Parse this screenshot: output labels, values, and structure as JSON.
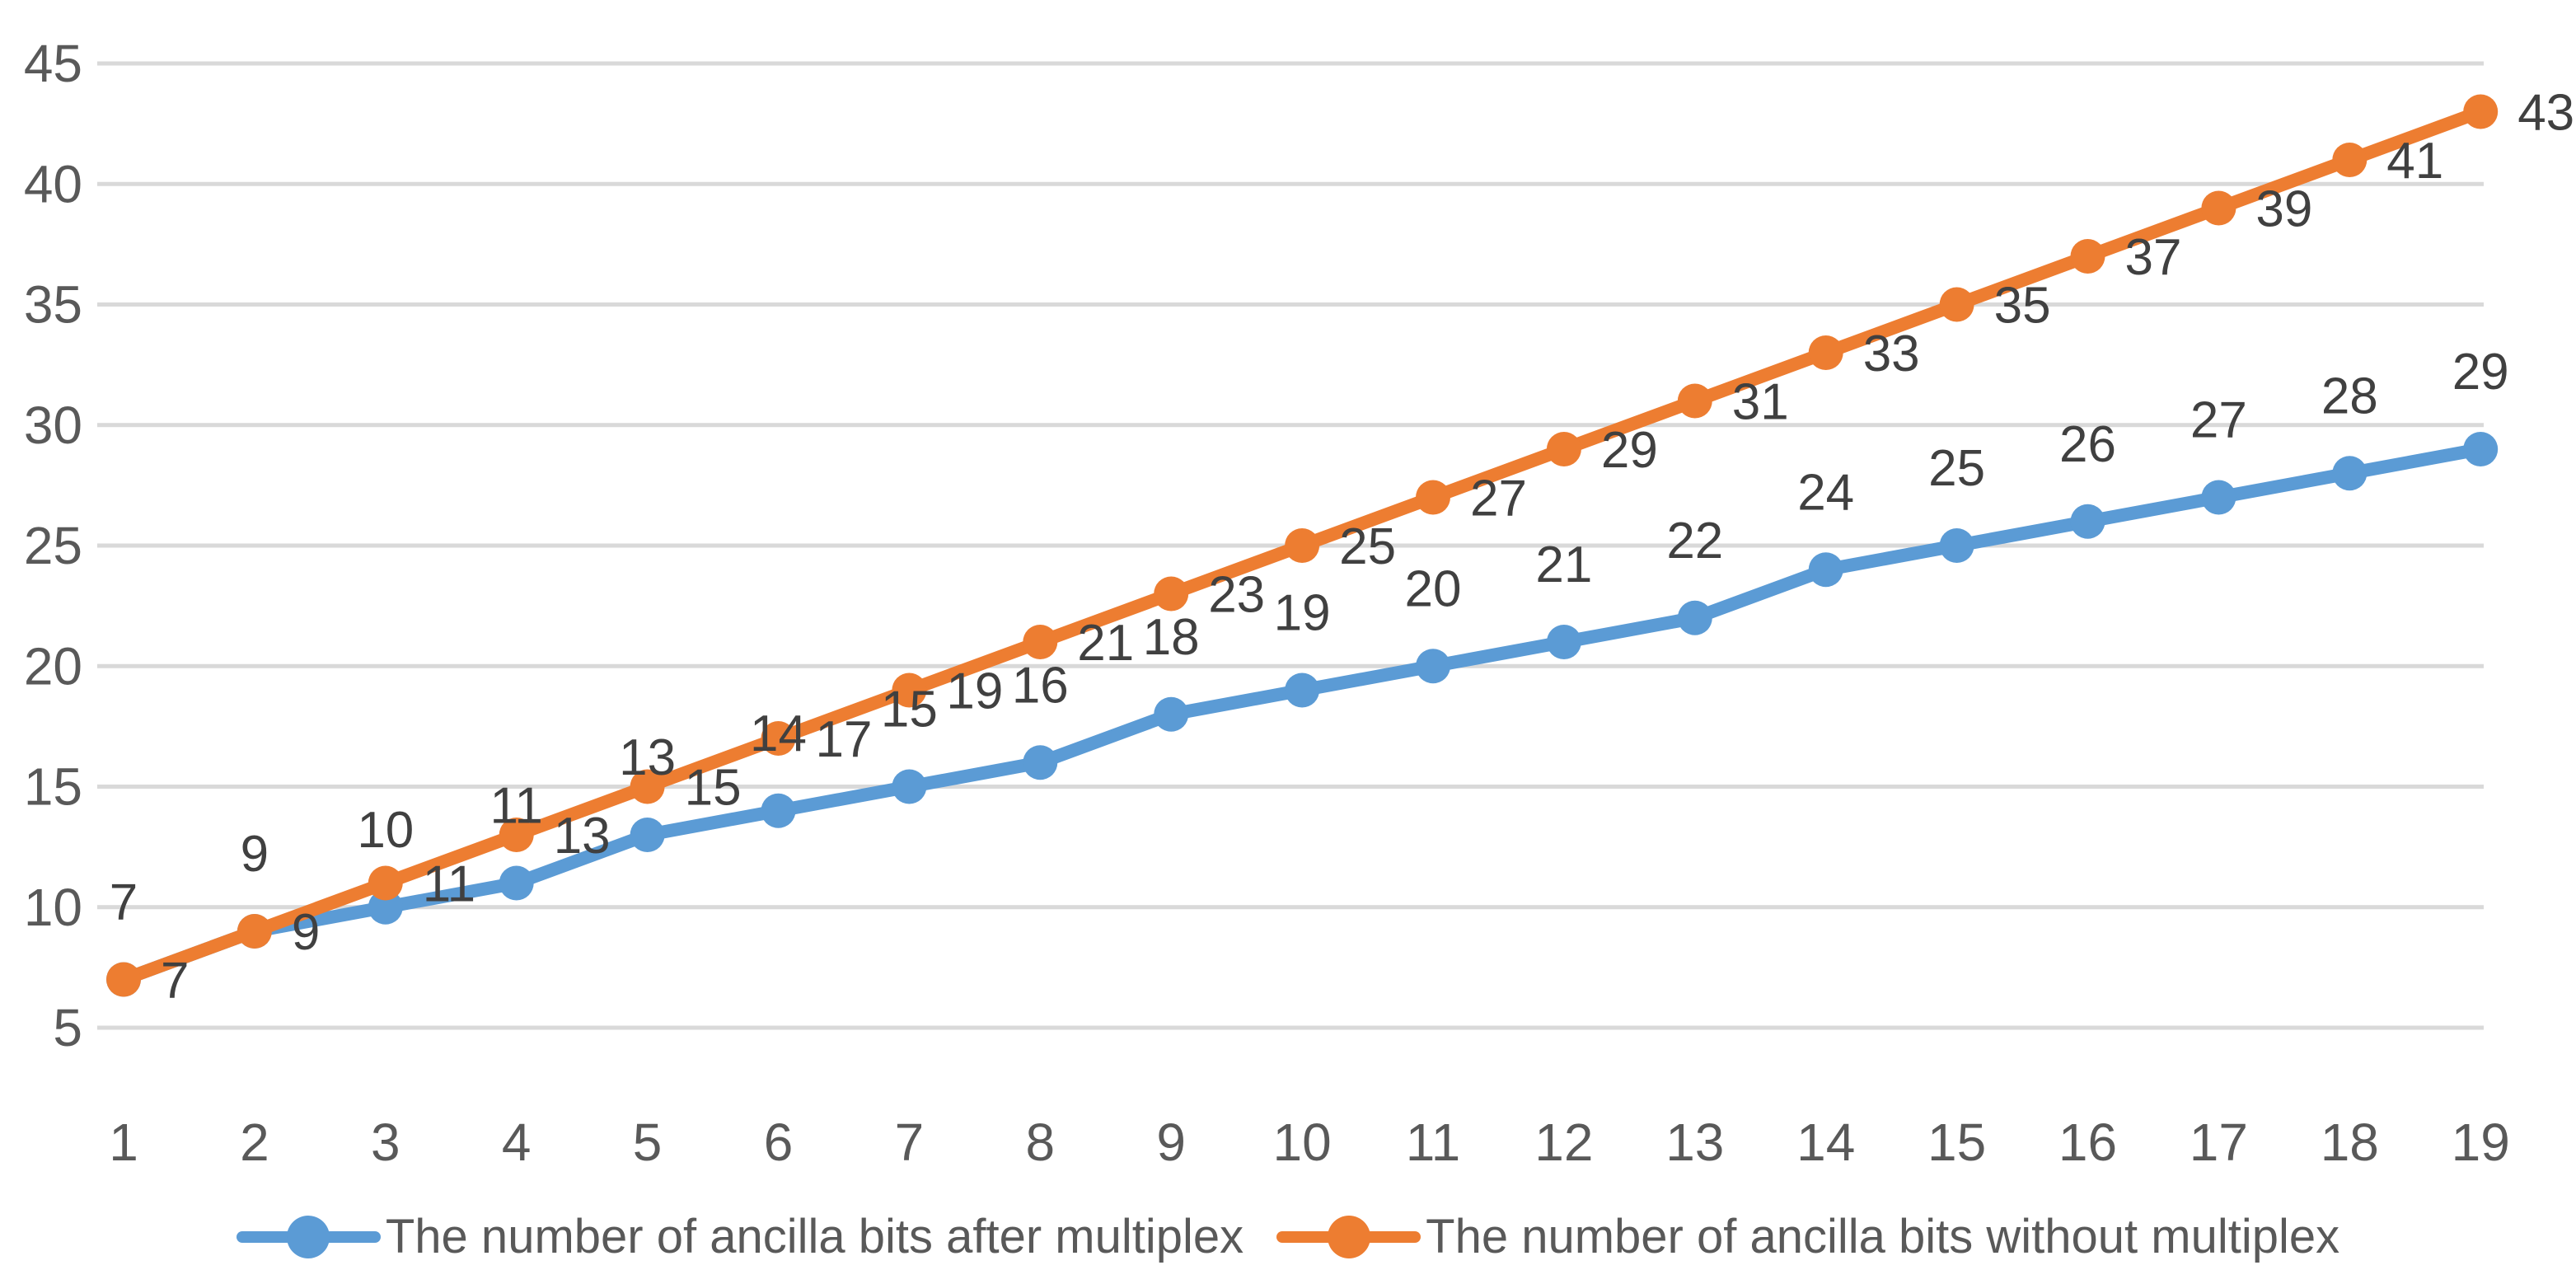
{
  "chart_data": {
    "type": "line",
    "title": "",
    "xlabel": "",
    "ylabel": "",
    "categories": [
      "1",
      "2",
      "3",
      "4",
      "5",
      "6",
      "7",
      "8",
      "9",
      "10",
      "11",
      "12",
      "13",
      "14",
      "15",
      "16",
      "17",
      "18",
      "19"
    ],
    "y_axis": {
      "min": 5,
      "max": 45,
      "step": 5,
      "tick_labels": [
        "45",
        "40",
        "35",
        "30",
        "25",
        "20",
        "15",
        "10",
        "5"
      ]
    },
    "grid": true,
    "legend_position": "bottom",
    "series": [
      {
        "name": "The number of ancilla bits after multiplex",
        "color": "#5B9BD5",
        "values": [
          7,
          9,
          10,
          11,
          13,
          14,
          15,
          16,
          18,
          19,
          20,
          21,
          22,
          24,
          25,
          26,
          27,
          28,
          29
        ],
        "label_position": "above"
      },
      {
        "name": "The number of ancilla bits without multiplex",
        "color": "#ED7D31",
        "values": [
          7,
          9,
          11,
          13,
          15,
          17,
          19,
          21,
          23,
          25,
          27,
          29,
          31,
          33,
          35,
          37,
          39,
          41,
          43
        ],
        "label_position": "right"
      }
    ],
    "colors": {
      "gridline": "#D9D9D9",
      "axis_text": "#595959",
      "data_label_text": "#404040",
      "background": "#FFFFFF"
    }
  }
}
